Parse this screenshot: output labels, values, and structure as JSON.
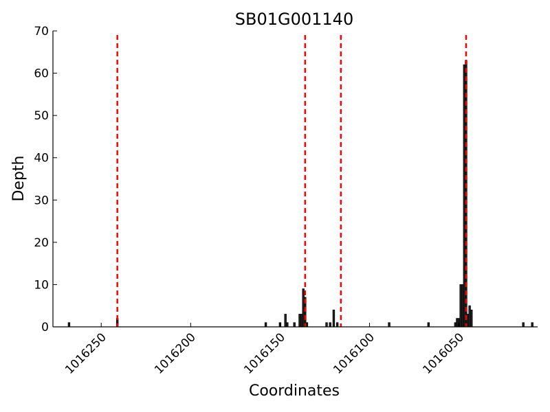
{
  "chart_data": {
    "type": "bar",
    "title": "SB01G001140",
    "xlabel": "Coordinates",
    "ylabel": "Depth",
    "xlim": [
      1016277,
      1016006
    ],
    "ylim": [
      0,
      70
    ],
    "x_axis_reversed": true,
    "x_ticks": [
      1016250,
      1016200,
      1016150,
      1016100,
      1016050
    ],
    "x_tick_labels": [
      "1016250",
      "1016200",
      "1016150",
      "1016100",
      "1016050"
    ],
    "y_ticks": [
      0,
      10,
      20,
      30,
      40,
      50,
      60,
      70
    ],
    "y_tick_labels": [
      "0",
      "10",
      "20",
      "30",
      "40",
      "50",
      "60",
      "70"
    ],
    "bin_width": 1,
    "bars": [
      {
        "x": 1016268,
        "y": 1
      },
      {
        "x": 1016241,
        "y": 2
      },
      {
        "x": 1016158,
        "y": 1
      },
      {
        "x": 1016150,
        "y": 1
      },
      {
        "x": 1016147,
        "y": 3
      },
      {
        "x": 1016146,
        "y": 1
      },
      {
        "x": 1016142,
        "y": 1
      },
      {
        "x": 1016139,
        "y": 3
      },
      {
        "x": 1016138,
        "y": 3
      },
      {
        "x": 1016137,
        "y": 9
      },
      {
        "x": 1016136,
        "y": 7
      },
      {
        "x": 1016135,
        "y": 1
      },
      {
        "x": 1016124,
        "y": 1
      },
      {
        "x": 1016122,
        "y": 1
      },
      {
        "x": 1016120,
        "y": 4
      },
      {
        "x": 1016118,
        "y": 1
      },
      {
        "x": 1016089,
        "y": 1
      },
      {
        "x": 1016067,
        "y": 1
      },
      {
        "x": 1016052,
        "y": 1
      },
      {
        "x": 1016051,
        "y": 2
      },
      {
        "x": 1016050,
        "y": 2
      },
      {
        "x": 1016049,
        "y": 10
      },
      {
        "x": 1016048,
        "y": 10
      },
      {
        "x": 1016047,
        "y": 62
      },
      {
        "x": 1016046,
        "y": 63
      },
      {
        "x": 1016045,
        "y": 3
      },
      {
        "x": 1016044,
        "y": 5
      },
      {
        "x": 1016043,
        "y": 4
      },
      {
        "x": 1016014,
        "y": 1
      },
      {
        "x": 1016009,
        "y": 1
      }
    ],
    "vertical_lines": [
      1016241,
      1016136,
      1016116,
      1016046
    ],
    "vertical_line_color": "#ff0000",
    "bar_color": "#222222",
    "grid": false,
    "legend": false
  }
}
